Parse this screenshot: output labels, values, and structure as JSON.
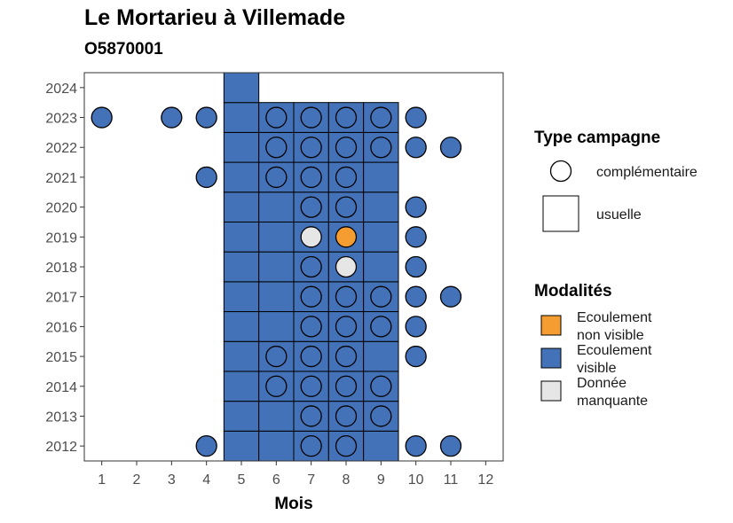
{
  "title": "Le Mortarieu à Villemade",
  "subtitle": "O5870001",
  "colors": {
    "Ecoulement visible": "#4472b8",
    "Ecoulement non visible": "#f59d31",
    "Donnée manquante": "#e6e6e6"
  },
  "chart_data": {
    "type": "heatmap",
    "xlabel": "Mois",
    "ylabel": "",
    "x_ticks": [
      1,
      2,
      3,
      4,
      5,
      6,
      7,
      8,
      9,
      10,
      11,
      12
    ],
    "y_ticks": [
      2012,
      2013,
      2014,
      2015,
      2016,
      2017,
      2018,
      2019,
      2020,
      2021,
      2022,
      2023,
      2024
    ],
    "xlim": [
      0.5,
      12.5
    ],
    "ylim": [
      2011.5,
      2024.5
    ],
    "legend_shape": {
      "title": "Type campagne",
      "items": [
        {
          "label": "complémentaire",
          "shape": "circle"
        },
        {
          "label": "usuelle",
          "shape": "square"
        }
      ]
    },
    "legend_fill": {
      "title": "Modalités",
      "items": [
        {
          "key": "Ecoulement non visible",
          "lines": [
            "Ecoulement",
            "non visible"
          ]
        },
        {
          "key": "Ecoulement visible",
          "lines": [
            "Ecoulement",
            "visible"
          ]
        },
        {
          "key": "Donnée manquante",
          "lines": [
            "Donnée",
            "manquante"
          ]
        }
      ]
    },
    "usuelle": [
      {
        "year": 2012,
        "months": [
          5,
          6,
          7,
          8,
          9
        ],
        "value": "Ecoulement visible"
      },
      {
        "year": 2013,
        "months": [
          5,
          6,
          7,
          8,
          9
        ],
        "value": "Ecoulement visible"
      },
      {
        "year": 2014,
        "months": [
          5,
          6,
          7,
          8,
          9
        ],
        "value": "Ecoulement visible"
      },
      {
        "year": 2015,
        "months": [
          5,
          6,
          7,
          8,
          9
        ],
        "value": "Ecoulement visible"
      },
      {
        "year": 2016,
        "months": [
          5,
          6,
          7,
          8,
          9
        ],
        "value": "Ecoulement visible"
      },
      {
        "year": 2017,
        "months": [
          5,
          6,
          7,
          8,
          9
        ],
        "value": "Ecoulement visible"
      },
      {
        "year": 2018,
        "months": [
          5,
          6,
          7,
          8,
          9
        ],
        "value": "Ecoulement visible"
      },
      {
        "year": 2019,
        "months": [
          5,
          6,
          7,
          8,
          9
        ],
        "value": "Ecoulement visible"
      },
      {
        "year": 2020,
        "months": [
          5,
          6,
          7,
          8,
          9
        ],
        "value": "Ecoulement visible"
      },
      {
        "year": 2021,
        "months": [
          5,
          6,
          7,
          8,
          9
        ],
        "value": "Ecoulement visible"
      },
      {
        "year": 2022,
        "months": [
          5,
          6,
          7,
          8,
          9
        ],
        "value": "Ecoulement visible"
      },
      {
        "year": 2023,
        "months": [
          5,
          6,
          7,
          8,
          9
        ],
        "value": "Ecoulement visible"
      },
      {
        "year": 2024,
        "months": [
          5
        ],
        "value": "Ecoulement visible"
      }
    ],
    "complementaire": [
      {
        "year": 2012,
        "month": 4,
        "value": "Ecoulement visible"
      },
      {
        "year": 2012,
        "month": 7,
        "value": "Ecoulement visible"
      },
      {
        "year": 2012,
        "month": 8,
        "value": "Ecoulement visible"
      },
      {
        "year": 2012,
        "month": 10,
        "value": "Ecoulement visible"
      },
      {
        "year": 2012,
        "month": 11,
        "value": "Ecoulement visible"
      },
      {
        "year": 2013,
        "month": 7,
        "value": "Ecoulement visible"
      },
      {
        "year": 2013,
        "month": 8,
        "value": "Ecoulement visible"
      },
      {
        "year": 2013,
        "month": 9,
        "value": "Ecoulement visible"
      },
      {
        "year": 2014,
        "month": 6,
        "value": "Ecoulement visible"
      },
      {
        "year": 2014,
        "month": 7,
        "value": "Ecoulement visible"
      },
      {
        "year": 2014,
        "month": 8,
        "value": "Ecoulement visible"
      },
      {
        "year": 2014,
        "month": 9,
        "value": "Ecoulement visible"
      },
      {
        "year": 2015,
        "month": 6,
        "value": "Ecoulement visible"
      },
      {
        "year": 2015,
        "month": 7,
        "value": "Ecoulement visible"
      },
      {
        "year": 2015,
        "month": 8,
        "value": "Ecoulement visible"
      },
      {
        "year": 2015,
        "month": 10,
        "value": "Ecoulement visible"
      },
      {
        "year": 2016,
        "month": 7,
        "value": "Ecoulement visible"
      },
      {
        "year": 2016,
        "month": 8,
        "value": "Ecoulement visible"
      },
      {
        "year": 2016,
        "month": 9,
        "value": "Ecoulement visible"
      },
      {
        "year": 2016,
        "month": 10,
        "value": "Ecoulement visible"
      },
      {
        "year": 2017,
        "month": 7,
        "value": "Ecoulement visible"
      },
      {
        "year": 2017,
        "month": 8,
        "value": "Ecoulement visible"
      },
      {
        "year": 2017,
        "month": 9,
        "value": "Ecoulement visible"
      },
      {
        "year": 2017,
        "month": 10,
        "value": "Ecoulement visible"
      },
      {
        "year": 2017,
        "month": 11,
        "value": "Ecoulement visible"
      },
      {
        "year": 2018,
        "month": 7,
        "value": "Ecoulement visible"
      },
      {
        "year": 2018,
        "month": 8,
        "value": "Donnée manquante"
      },
      {
        "year": 2018,
        "month": 10,
        "value": "Ecoulement visible"
      },
      {
        "year": 2019,
        "month": 7,
        "value": "Donnée manquante"
      },
      {
        "year": 2019,
        "month": 8,
        "value": "Ecoulement non visible"
      },
      {
        "year": 2019,
        "month": 10,
        "value": "Ecoulement visible"
      },
      {
        "year": 2020,
        "month": 7,
        "value": "Ecoulement visible"
      },
      {
        "year": 2020,
        "month": 8,
        "value": "Ecoulement visible"
      },
      {
        "year": 2020,
        "month": 10,
        "value": "Ecoulement visible"
      },
      {
        "year": 2021,
        "month": 4,
        "value": "Ecoulement visible"
      },
      {
        "year": 2021,
        "month": 6,
        "value": "Ecoulement visible"
      },
      {
        "year": 2021,
        "month": 7,
        "value": "Ecoulement visible"
      },
      {
        "year": 2021,
        "month": 8,
        "value": "Ecoulement visible"
      },
      {
        "year": 2022,
        "month": 6,
        "value": "Ecoulement visible"
      },
      {
        "year": 2022,
        "month": 7,
        "value": "Ecoulement visible"
      },
      {
        "year": 2022,
        "month": 8,
        "value": "Ecoulement visible"
      },
      {
        "year": 2022,
        "month": 9,
        "value": "Ecoulement visible"
      },
      {
        "year": 2022,
        "month": 10,
        "value": "Ecoulement visible"
      },
      {
        "year": 2022,
        "month": 11,
        "value": "Ecoulement visible"
      },
      {
        "year": 2023,
        "month": 1,
        "value": "Ecoulement visible"
      },
      {
        "year": 2023,
        "month": 3,
        "value": "Ecoulement visible"
      },
      {
        "year": 2023,
        "month": 4,
        "value": "Ecoulement visible"
      },
      {
        "year": 2023,
        "month": 6,
        "value": "Ecoulement visible"
      },
      {
        "year": 2023,
        "month": 7,
        "value": "Ecoulement visible"
      },
      {
        "year": 2023,
        "month": 8,
        "value": "Ecoulement visible"
      },
      {
        "year": 2023,
        "month": 9,
        "value": "Ecoulement visible"
      },
      {
        "year": 2023,
        "month": 10,
        "value": "Ecoulement visible"
      }
    ]
  }
}
